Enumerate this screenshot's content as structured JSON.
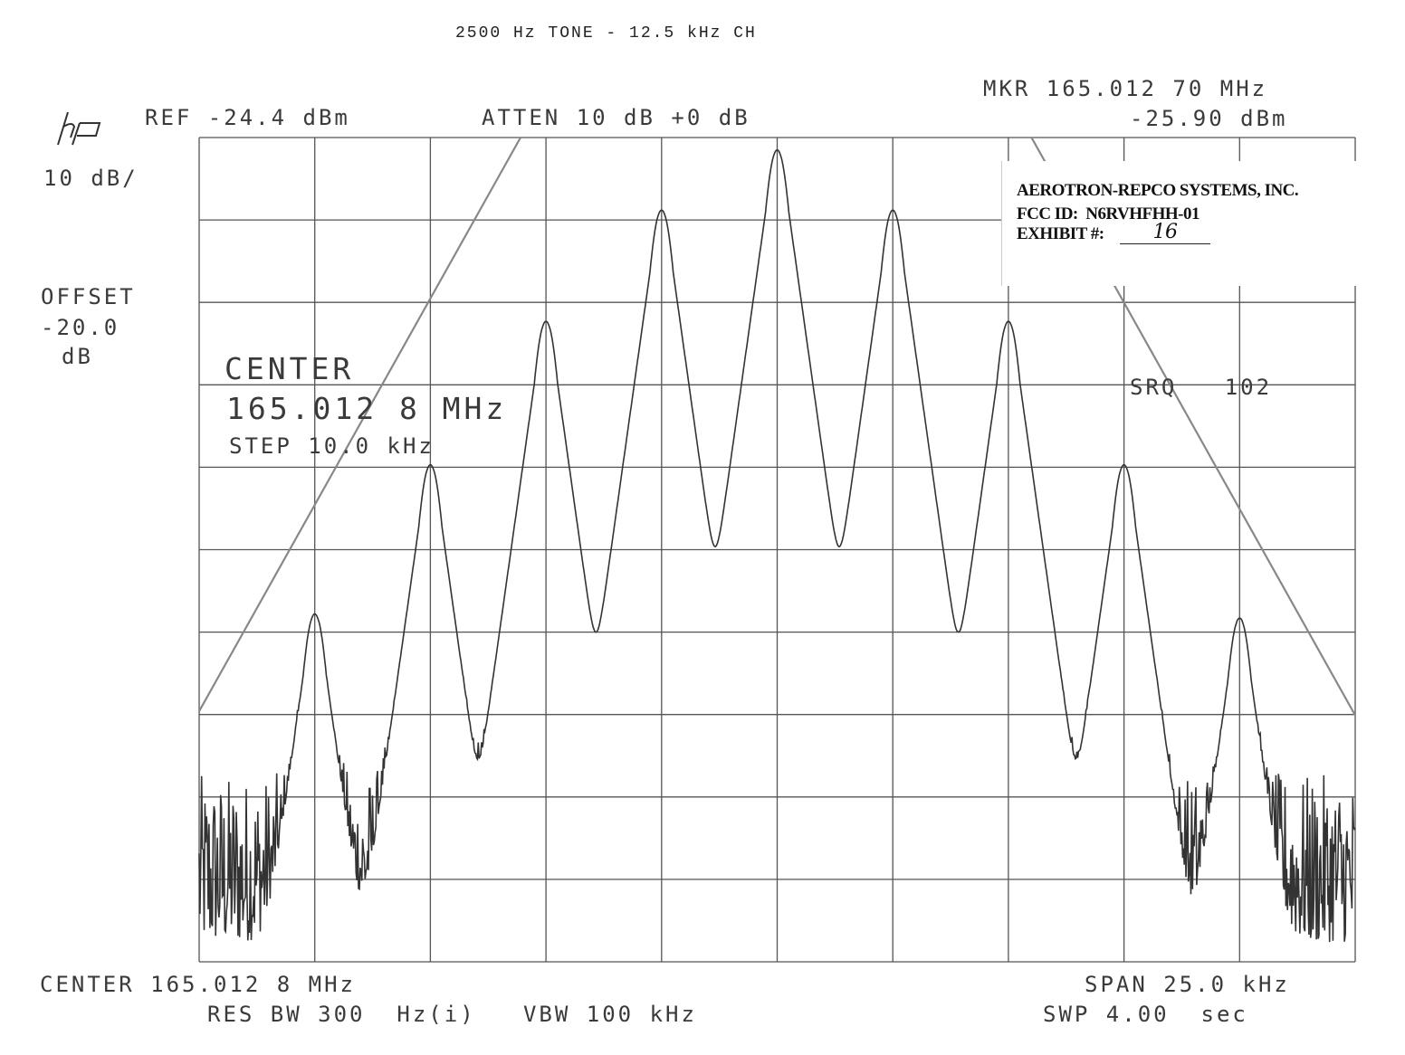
{
  "title": "2500 Hz TONE - 12.5 kHz CH",
  "header": {
    "logo": "hp",
    "ref": "REF -24.4 dBm",
    "atten": "ATTEN 10 dB +0 dB",
    "marker_freq": "MKR 165.012 70 MHz",
    "marker_level": "-25.90 dBm",
    "scale": "10 dB/",
    "offset_label": "OFFSET",
    "offset_value": "-20.0",
    "offset_unit": "dB"
  },
  "overlay": {
    "center_label": "CENTER",
    "center_value": "165.012 8 MHz",
    "step": "STEP 10.0 kHz",
    "srq": "SRQ   102"
  },
  "footer": {
    "center": "CENTER 165.012 8 MHz",
    "span": "SPAN 25.0 kHz",
    "rbw": "RES BW 300  Hz(i)   VBW 100 kHz",
    "swp": "SWP 4.00  sec"
  },
  "stamp": {
    "company": "AEROTRON-REPCO SYSTEMS, INC.",
    "fcc_id": "FCC ID:  N6RVHFHH-01",
    "exhibit_label": "EXHIBIT #:",
    "exhibit_number": "16"
  },
  "chart_data": {
    "type": "line",
    "title": "2500 Hz TONE - 12.5 kHz CH",
    "xlabel": "",
    "ylabel": "",
    "x_unit": "kHz offset from 165.0128 MHz",
    "xlim": [
      -12.5,
      12.5
    ],
    "ylim": [
      -124.4,
      -24.4
    ],
    "x_divisions": 10,
    "y_divisions": 10,
    "grid": true,
    "trace_color": "#333333",
    "mask_color": "#888888",
    "peaks": [
      {
        "x": -10.0,
        "y": -82.2
      },
      {
        "x": -7.5,
        "y": -64.1
      },
      {
        "x": -5.0,
        "y": -46.7
      },
      {
        "x": -2.5,
        "y": -33.2
      },
      {
        "x": 0.0,
        "y": -25.9
      },
      {
        "x": 2.5,
        "y": -33.2
      },
      {
        "x": 5.0,
        "y": -46.7
      },
      {
        "x": 7.5,
        "y": -64.1
      },
      {
        "x": 10.0,
        "y": -82.7
      }
    ],
    "noise_floor_range": [
      -122,
      -95
    ],
    "mask_lines": [
      {
        "points": [
          [
            -12.5,
            -94.0
          ],
          [
            -5.55,
            -24.4
          ]
        ]
      },
      {
        "points": [
          [
            5.5,
            -24.4
          ],
          [
            12.5,
            -94.5
          ]
        ]
      }
    ]
  }
}
